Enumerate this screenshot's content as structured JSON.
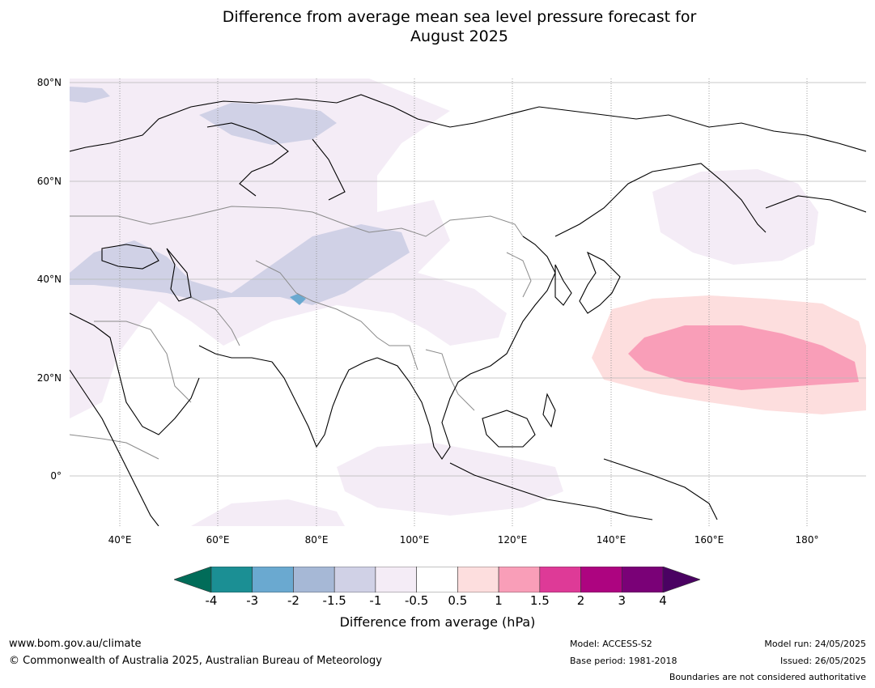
{
  "title_line1": "Difference from average mean sea level pressure forecast for",
  "title_line2": "August 2025",
  "lat_labels": [
    "80°N",
    "60°N",
    "40°N",
    "20°N",
    "0°"
  ],
  "lon_labels": [
    "40°E",
    "60°E",
    "80°E",
    "100°E",
    "120°E",
    "140°E",
    "160°E",
    "180°"
  ],
  "colorbar": {
    "ticks": [
      "-4",
      "-3",
      "-2",
      "-1.5",
      "-1",
      "-0.5",
      "0.5",
      "1",
      "1.5",
      "2",
      "3",
      "4"
    ],
    "colors": [
      "#1b8f94",
      "#6aa9d0",
      "#a6b8d6",
      "#d0d1e6",
      "#f4ecf6",
      "#ffffff",
      "#fddede",
      "#f99eb8",
      "#de3a97",
      "#ad0480",
      "#7a0177"
    ],
    "under_color": "#016c59",
    "over_color": "#4a0262",
    "label": "Difference from average (hPa)"
  },
  "footer": {
    "website": "www.bom.gov.au/climate",
    "copyright": "© Commonwealth of Australia 2025, Australian Bureau of Meteorology",
    "model": "Model: ACCESS-S2",
    "base_period": "Base period: 1981-2018",
    "model_run": "Model run: 24/05/2025",
    "issued": "Issued: 26/05/2025",
    "disclaimer": "Boundaries are not considered authoritative"
  }
}
